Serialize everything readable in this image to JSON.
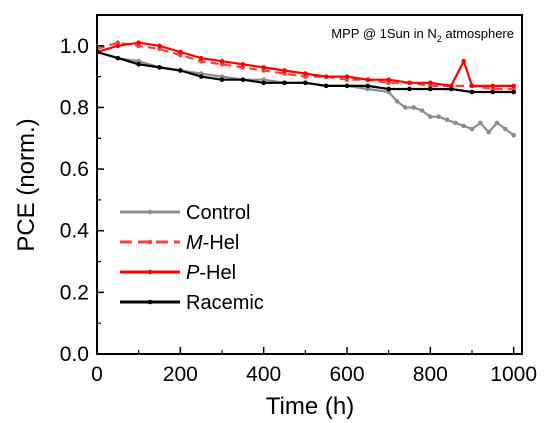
{
  "chart_data": {
    "type": "line",
    "title": "",
    "annotation": {
      "pre": "MPP @ 1Sun in N",
      "sub": "2",
      "post": " atmosphere"
    },
    "xlabel": "Time (h)",
    "ylabel": "PCE (norm.)",
    "xlim": [
      0,
      1020
    ],
    "ylim": [
      0,
      1.1
    ],
    "xticks": [
      "0",
      "200",
      "400",
      "600",
      "800",
      "1000"
    ],
    "yticks": [
      "0.0",
      "0.2",
      "0.4",
      "0.6",
      "0.8",
      "1.0"
    ],
    "legend_position": "lower-left",
    "series": [
      {
        "name": "Control",
        "color": "#8c8c8c",
        "style": "solid",
        "x": [
          0,
          50,
          100,
          150,
          200,
          250,
          300,
          350,
          400,
          450,
          500,
          550,
          600,
          650,
          700,
          720,
          740,
          760,
          780,
          800,
          820,
          840,
          860,
          880,
          900,
          920,
          940,
          960,
          980,
          1000
        ],
        "y": [
          0.98,
          0.96,
          0.95,
          0.93,
          0.92,
          0.91,
          0.9,
          0.89,
          0.89,
          0.88,
          0.88,
          0.87,
          0.87,
          0.86,
          0.85,
          0.82,
          0.8,
          0.8,
          0.79,
          0.77,
          0.77,
          0.76,
          0.75,
          0.74,
          0.73,
          0.75,
          0.72,
          0.75,
          0.73,
          0.71
        ]
      },
      {
        "name": "M-Hel",
        "name_italic": "M",
        "name_rest": "-Hel",
        "color": "#ff4040",
        "style": "dashed",
        "x": [
          0,
          50,
          100,
          150,
          200,
          250,
          300,
          350,
          400,
          450,
          500,
          550,
          600,
          650,
          700,
          750,
          800,
          850,
          900,
          950,
          1000
        ],
        "y": [
          0.99,
          1.01,
          1.0,
          0.99,
          0.97,
          0.95,
          0.94,
          0.93,
          0.92,
          0.91,
          0.9,
          0.9,
          0.89,
          0.89,
          0.88,
          0.88,
          0.87,
          0.87,
          0.87,
          0.86,
          0.86
        ]
      },
      {
        "name": "P-Hel",
        "name_italic": "P",
        "name_rest": "-Hel",
        "color": "#ff0000",
        "style": "solid",
        "x": [
          0,
          50,
          100,
          150,
          200,
          250,
          300,
          350,
          400,
          450,
          500,
          550,
          600,
          650,
          700,
          750,
          800,
          850,
          880,
          900,
          950,
          1000
        ],
        "y": [
          0.98,
          1.0,
          1.01,
          1.0,
          0.98,
          0.96,
          0.95,
          0.94,
          0.93,
          0.92,
          0.91,
          0.9,
          0.9,
          0.89,
          0.89,
          0.88,
          0.88,
          0.87,
          0.95,
          0.87,
          0.87,
          0.87
        ]
      },
      {
        "name": "Racemic",
        "color": "#000000",
        "style": "solid",
        "x": [
          0,
          50,
          100,
          150,
          200,
          250,
          300,
          350,
          400,
          450,
          500,
          550,
          600,
          650,
          700,
          750,
          800,
          850,
          900,
          950,
          1000
        ],
        "y": [
          0.98,
          0.96,
          0.94,
          0.93,
          0.92,
          0.9,
          0.89,
          0.89,
          0.88,
          0.88,
          0.88,
          0.87,
          0.87,
          0.87,
          0.86,
          0.86,
          0.86,
          0.86,
          0.85,
          0.85,
          0.85
        ]
      }
    ]
  }
}
